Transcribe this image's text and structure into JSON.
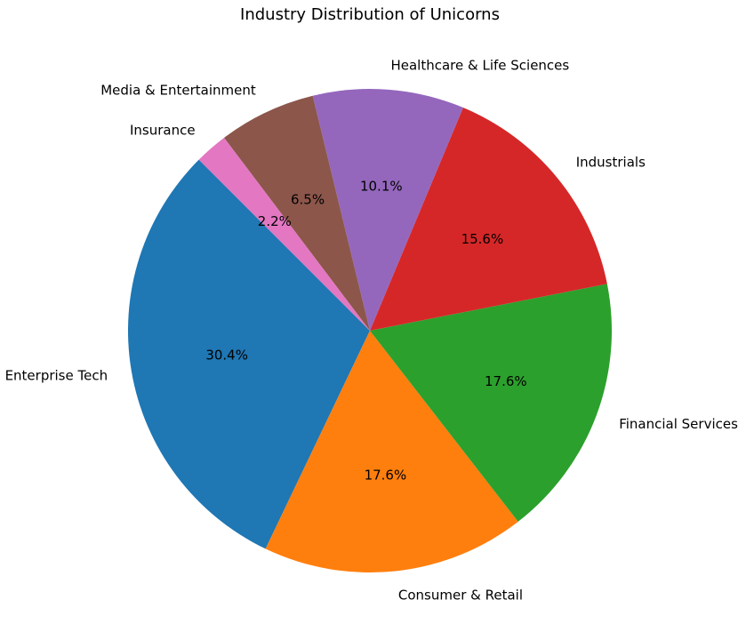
{
  "chart_data": {
    "type": "pie",
    "title": "Industry Distribution of Unicorns",
    "start_angle_deg": 135,
    "direction": "counterclockwise",
    "slices": [
      {
        "label": "Enterprise Tech",
        "value": 30.4,
        "pct_label": "30.4%",
        "color": "#1f77b4"
      },
      {
        "label": "Consumer & Retail",
        "value": 17.6,
        "pct_label": "17.6%",
        "color": "#ff7f0e"
      },
      {
        "label": "Financial Services",
        "value": 17.6,
        "pct_label": "17.6%",
        "color": "#2ca02c"
      },
      {
        "label": "Industrials",
        "value": 15.6,
        "pct_label": "15.6%",
        "color": "#d62728"
      },
      {
        "label": "Healthcare & Life Sciences",
        "value": 10.1,
        "pct_label": "10.1%",
        "color": "#9467bd"
      },
      {
        "label": "Media & Entertainment",
        "value": 6.5,
        "pct_label": "6.5%",
        "color": "#8c564b"
      },
      {
        "label": "Insurance",
        "value": 2.2,
        "pct_label": "2.2%",
        "color": "#e377c2"
      }
    ]
  }
}
